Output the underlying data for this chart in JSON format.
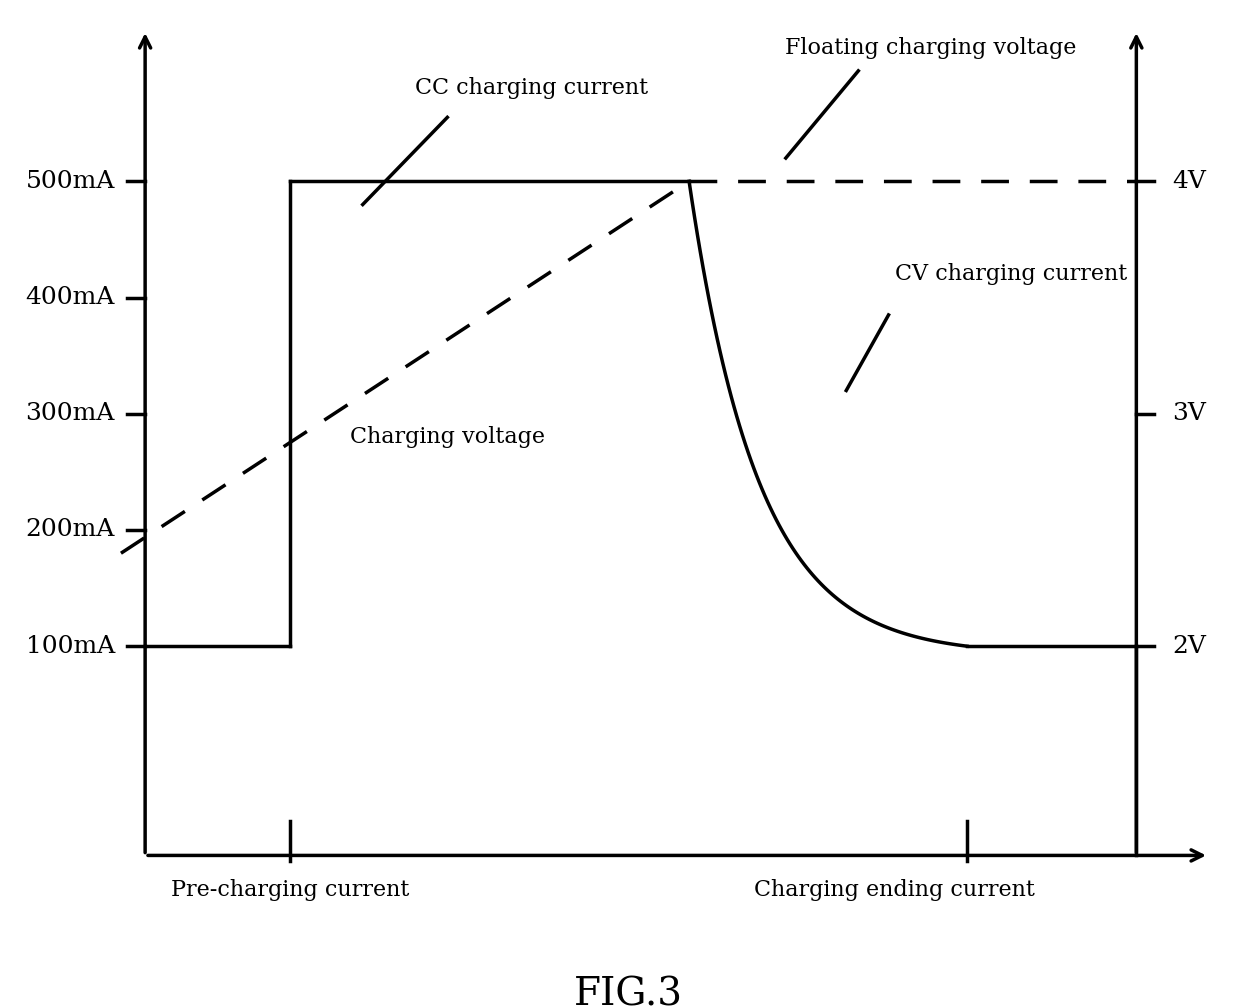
{
  "title": "FIG.3",
  "background_color": "#ffffff",
  "left_yticks": [
    "100mA",
    "200mA",
    "300mA",
    "400mA",
    "500mA"
  ],
  "left_ytick_vals": [
    1,
    2,
    3,
    4,
    5
  ],
  "right_yticks": [
    "2V",
    "3V",
    "4V"
  ],
  "right_ytick_vals": [
    1,
    3,
    5
  ],
  "annotations": {
    "cc_charging_current": "CC charging current",
    "floating_charging_voltage": "Floating charging voltage",
    "charging_voltage": "Charging voltage",
    "cv_charging_current": "CV charging current",
    "pre_charging_current": "Pre-charging current",
    "charging_ending_current": "Charging ending current"
  },
  "line_color": "#000000",
  "dashed_line_color": "#000000"
}
